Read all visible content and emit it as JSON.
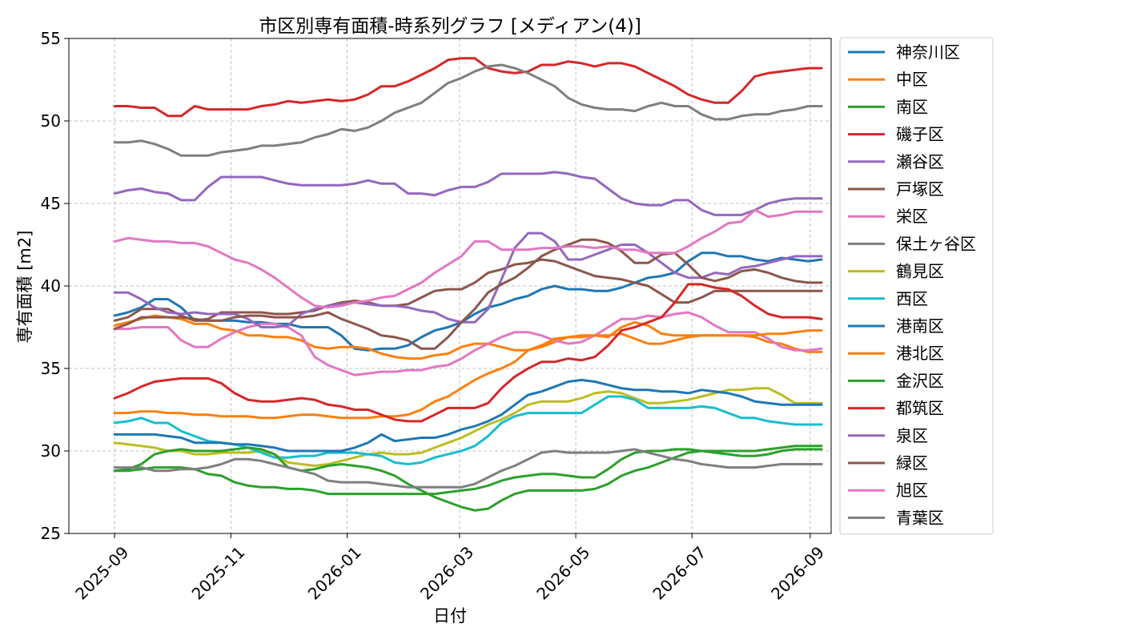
{
  "chart_data": {
    "type": "line",
    "title": "市区別専有面積-時系列グラフ [メディアン(4)]",
    "xlabel": "日付",
    "ylabel": "専有面積 [m2]",
    "x_start": "2025-09-01",
    "x_step_days": 7,
    "xlim": [
      "2025-08-08",
      "2026-09-12"
    ],
    "ylim": [
      25,
      55
    ],
    "y_ticks": [
      25,
      30,
      35,
      40,
      45,
      50,
      55
    ],
    "x_ticks": [
      {
        "label": "2025-09",
        "date": "2025-09-01"
      },
      {
        "label": "2025-11",
        "date": "2025-11-01"
      },
      {
        "label": "2026-01",
        "date": "2026-01-01"
      },
      {
        "label": "2026-03",
        "date": "2026-03-01"
      },
      {
        "label": "2026-05",
        "date": "2026-05-01"
      },
      {
        "label": "2026-07",
        "date": "2026-07-01"
      },
      {
        "label": "2026-09",
        "date": "2026-09-01"
      }
    ],
    "grid": true,
    "legend_position": "outside-right",
    "series": [
      {
        "name": "神奈川区",
        "color": "#1f77b4",
        "values": [
          38.2,
          38.4,
          38.7,
          39.2,
          39.2,
          38.7,
          37.9,
          37.9,
          37.9,
          37.9,
          37.8,
          37.8,
          37.7,
          37.7,
          37.5,
          37.5,
          37.5,
          37.0,
          36.2,
          36.1,
          36.2,
          36.2,
          36.4,
          36.9,
          37.3,
          37.5,
          37.8,
          38.3,
          38.7,
          38.9,
          39.2,
          39.4,
          39.8,
          40.0,
          39.8,
          39.8,
          39.7,
          39.7,
          39.9,
          40.2,
          40.5,
          40.6,
          40.8,
          41.5,
          42.0,
          42.0,
          41.8,
          41.8,
          41.6,
          41.5,
          41.7,
          41.6,
          41.5,
          41.6
        ]
      },
      {
        "name": "中区",
        "color": "#ff7f0e",
        "values": [
          37.6,
          37.8,
          38.0,
          38.2,
          38.1,
          38.0,
          37.7,
          37.7,
          37.4,
          37.3,
          37.0,
          37.0,
          36.9,
          36.9,
          36.7,
          36.3,
          36.2,
          36.3,
          36.3,
          36.2,
          35.9,
          35.7,
          35.6,
          35.6,
          35.8,
          35.9,
          36.3,
          36.5,
          36.5,
          36.3,
          36.1,
          36.1,
          36.3,
          36.6,
          36.9,
          36.9,
          37.0,
          37.0,
          37.1,
          36.8,
          36.5,
          36.5,
          36.7,
          36.9,
          37.0,
          37.0,
          37.0,
          37.0,
          36.9,
          36.6,
          36.5,
          36.2,
          36.0,
          36.0
        ]
      },
      {
        "name": "南区",
        "color": "#2ca02c",
        "values": [
          28.8,
          28.8,
          28.9,
          29.0,
          29.0,
          29.0,
          28.9,
          28.6,
          28.5,
          28.1,
          27.9,
          27.8,
          27.8,
          27.7,
          27.7,
          27.6,
          27.4,
          27.4,
          27.4,
          27.4,
          27.4,
          27.4,
          27.4,
          27.4,
          27.4,
          27.5,
          27.6,
          27.7,
          27.9,
          28.2,
          28.4,
          28.5,
          28.6,
          28.6,
          28.5,
          28.4,
          28.4,
          28.9,
          29.5,
          29.9,
          30.0,
          30.0,
          30.1,
          30.1,
          30.0,
          29.9,
          29.8,
          29.7,
          29.7,
          29.8,
          30.0,
          30.1,
          30.1,
          30.1
        ]
      },
      {
        "name": "磯子区",
        "color": "#d62728",
        "values": [
          50.9,
          50.9,
          50.8,
          50.8,
          50.3,
          50.3,
          50.9,
          50.7,
          50.7,
          50.7,
          50.7,
          50.9,
          51.0,
          51.2,
          51.1,
          51.2,
          51.3,
          51.2,
          51.3,
          51.6,
          52.1,
          52.1,
          52.4,
          52.8,
          53.2,
          53.7,
          53.8,
          53.8,
          53.2,
          53.0,
          52.9,
          53.0,
          53.4,
          53.4,
          53.6,
          53.5,
          53.3,
          53.5,
          53.5,
          53.3,
          52.9,
          52.5,
          52.1,
          51.6,
          51.3,
          51.1,
          51.1,
          51.8,
          52.7,
          52.9,
          53.0,
          53.1,
          53.2,
          53.2
        ]
      },
      {
        "name": "瀬谷区",
        "color": "#9467bd",
        "values": [
          45.6,
          45.8,
          45.9,
          45.7,
          45.6,
          45.2,
          45.2,
          46.0,
          46.6,
          46.6,
          46.6,
          46.6,
          46.4,
          46.2,
          46.1,
          46.1,
          46.1,
          46.1,
          46.2,
          46.4,
          46.2,
          46.2,
          45.6,
          45.6,
          45.5,
          45.8,
          46.0,
          46.0,
          46.3,
          46.8,
          46.8,
          46.8,
          46.8,
          46.9,
          46.8,
          46.6,
          46.5,
          45.9,
          45.3,
          45.0,
          44.9,
          44.9,
          45.2,
          45.2,
          44.6,
          44.3,
          44.3,
          44.3,
          44.6,
          45.0,
          45.2,
          45.3,
          45.3,
          45.3
        ]
      },
      {
        "name": "戸塚区",
        "color": "#8c564b",
        "values": [
          37.9,
          38.1,
          38.6,
          38.6,
          38.6,
          38.2,
          37.9,
          38.0,
          38.4,
          38.4,
          38.4,
          38.4,
          38.3,
          38.3,
          38.4,
          38.5,
          38.8,
          39.0,
          39.1,
          39.0,
          38.8,
          38.8,
          38.9,
          39.3,
          39.7,
          39.8,
          39.8,
          40.2,
          40.8,
          41.0,
          41.3,
          41.4,
          41.6,
          41.5,
          41.2,
          40.9,
          40.6,
          40.5,
          40.4,
          40.2,
          40.0,
          39.5,
          39.0,
          39.0,
          39.3,
          39.7,
          39.7,
          39.7,
          39.7,
          39.7,
          39.7,
          39.7,
          39.7,
          39.7
        ]
      },
      {
        "name": "栄区",
        "color": "#e377c2",
        "values": [
          37.4,
          37.4,
          37.5,
          37.5,
          37.5,
          36.7,
          36.3,
          36.3,
          36.8,
          37.2,
          37.5,
          37.7,
          37.7,
          37.5,
          37.0,
          35.7,
          35.2,
          34.9,
          34.6,
          34.7,
          34.8,
          34.8,
          34.9,
          34.9,
          35.1,
          35.2,
          35.6,
          36.1,
          36.5,
          36.9,
          37.2,
          37.2,
          37.0,
          36.7,
          36.5,
          36.6,
          37.0,
          37.5,
          38.0,
          38.0,
          38.2,
          38.1,
          38.3,
          38.4,
          38.1,
          37.6,
          37.2,
          37.2,
          37.2,
          36.8,
          36.3,
          36.1,
          36.1,
          36.2
        ]
      },
      {
        "name": "保土ヶ谷区",
        "color": "#7f7f7f",
        "values": [
          48.7,
          48.7,
          48.8,
          48.6,
          48.3,
          47.9,
          47.9,
          47.9,
          48.1,
          48.2,
          48.3,
          48.5,
          48.5,
          48.6,
          48.7,
          49.0,
          49.2,
          49.5,
          49.4,
          49.6,
          50.0,
          50.5,
          50.8,
          51.1,
          51.7,
          52.3,
          52.6,
          53.0,
          53.3,
          53.4,
          53.2,
          52.9,
          52.5,
          52.1,
          51.4,
          51.0,
          50.8,
          50.7,
          50.7,
          50.6,
          50.9,
          51.1,
          50.9,
          50.9,
          50.4,
          50.1,
          50.1,
          50.3,
          50.4,
          50.4,
          50.6,
          50.7,
          50.9,
          50.9
        ]
      },
      {
        "name": "鶴見区",
        "color": "#bcbd22",
        "values": [
          30.5,
          30.4,
          30.3,
          30.2,
          30.0,
          30.0,
          29.8,
          29.8,
          29.9,
          29.9,
          29.9,
          30.0,
          29.8,
          29.3,
          29.2,
          29.1,
          29.2,
          29.4,
          29.6,
          29.8,
          29.9,
          29.8,
          29.8,
          29.9,
          30.2,
          30.5,
          30.8,
          31.2,
          31.6,
          31.9,
          32.3,
          32.8,
          33.0,
          33.0,
          33.0,
          33.2,
          33.5,
          33.6,
          33.5,
          33.2,
          32.9,
          32.9,
          33.0,
          33.1,
          33.3,
          33.5,
          33.7,
          33.7,
          33.8,
          33.8,
          33.4,
          32.9,
          32.9,
          32.9
        ]
      },
      {
        "name": "西区",
        "color": "#17becf",
        "values": [
          31.7,
          31.8,
          32.0,
          31.7,
          31.7,
          31.2,
          30.9,
          30.6,
          30.5,
          30.4,
          30.2,
          29.9,
          29.6,
          29.6,
          29.7,
          29.7,
          29.9,
          29.9,
          29.9,
          29.8,
          29.7,
          29.3,
          29.2,
          29.3,
          29.6,
          29.8,
          30.0,
          30.3,
          30.9,
          31.7,
          32.1,
          32.3,
          32.3,
          32.3,
          32.3,
          32.3,
          32.8,
          33.3,
          33.3,
          33.1,
          32.6,
          32.6,
          32.6,
          32.6,
          32.7,
          32.6,
          32.3,
          32.0,
          32.0,
          31.8,
          31.7,
          31.6,
          31.6,
          31.6
        ]
      },
      {
        "name": "港南区",
        "color": "#1f77b4",
        "values": [
          31.0,
          31.0,
          31.0,
          31.0,
          30.9,
          30.8,
          30.5,
          30.5,
          30.5,
          30.4,
          30.4,
          30.3,
          30.2,
          30.0,
          30.0,
          30.0,
          30.0,
          30.0,
          30.2,
          30.5,
          31.0,
          30.6,
          30.7,
          30.8,
          30.8,
          31.0,
          31.3,
          31.5,
          31.8,
          32.2,
          32.8,
          33.4,
          33.6,
          33.9,
          34.2,
          34.3,
          34.2,
          34.0,
          33.8,
          33.7,
          33.7,
          33.6,
          33.6,
          33.5,
          33.7,
          33.6,
          33.5,
          33.3,
          33.0,
          32.9,
          32.8,
          32.8,
          32.8,
          32.8
        ]
      },
      {
        "name": "港北区",
        "color": "#ff7f0e",
        "values": [
          32.3,
          32.3,
          32.4,
          32.4,
          32.3,
          32.3,
          32.2,
          32.2,
          32.1,
          32.1,
          32.1,
          32.0,
          32.0,
          32.1,
          32.2,
          32.2,
          32.1,
          32.0,
          32.0,
          32.0,
          32.1,
          32.1,
          32.2,
          32.5,
          33.0,
          33.3,
          33.8,
          34.3,
          34.7,
          35.0,
          35.4,
          36.1,
          36.4,
          36.8,
          36.9,
          37.0,
          37.0,
          36.9,
          37.5,
          37.8,
          37.6,
          37.1,
          37.0,
          37.0,
          37.0,
          37.0,
          37.0,
          37.0,
          37.0,
          37.1,
          37.1,
          37.2,
          37.3,
          37.3
        ]
      },
      {
        "name": "金沢区",
        "color": "#2ca02c",
        "values": [
          28.8,
          28.9,
          29.2,
          29.8,
          30.0,
          30.1,
          30.0,
          30.0,
          30.0,
          30.1,
          30.2,
          30.1,
          29.8,
          29.0,
          28.8,
          28.9,
          29.1,
          29.2,
          29.1,
          29.0,
          28.8,
          28.5,
          28.0,
          27.6,
          27.2,
          26.9,
          26.6,
          26.4,
          26.5,
          27.0,
          27.4,
          27.6,
          27.6,
          27.6,
          27.6,
          27.6,
          27.7,
          28.0,
          28.5,
          28.8,
          29.0,
          29.3,
          29.6,
          29.9,
          30.0,
          30.0,
          30.0,
          30.0,
          30.0,
          30.1,
          30.2,
          30.3,
          30.3,
          30.3
        ]
      },
      {
        "name": "都筑区",
        "color": "#d62728",
        "values": [
          33.2,
          33.5,
          33.9,
          34.2,
          34.3,
          34.4,
          34.4,
          34.4,
          34.1,
          33.5,
          33.1,
          33.0,
          33.0,
          33.1,
          33.2,
          33.1,
          32.8,
          32.7,
          32.5,
          32.5,
          32.2,
          31.9,
          31.8,
          31.8,
          32.2,
          32.6,
          32.6,
          32.6,
          32.9,
          33.8,
          34.5,
          35.0,
          35.4,
          35.4,
          35.6,
          35.5,
          35.7,
          36.4,
          37.3,
          37.5,
          37.8,
          38.1,
          39.0,
          40.1,
          40.1,
          39.9,
          39.8,
          39.4,
          38.8,
          38.3,
          38.1,
          38.1,
          38.1,
          38.0
        ]
      },
      {
        "name": "泉区",
        "color": "#9467bd",
        "values": [
          39.6,
          39.6,
          39.2,
          38.7,
          38.4,
          38.3,
          38.4,
          38.3,
          38.3,
          38.3,
          38.0,
          37.5,
          37.5,
          37.6,
          38.3,
          38.6,
          38.8,
          38.9,
          39.0,
          38.9,
          38.8,
          38.8,
          38.7,
          38.5,
          38.4,
          38.0,
          37.8,
          37.8,
          38.6,
          40.4,
          42.3,
          43.2,
          43.2,
          42.7,
          41.6,
          41.6,
          41.9,
          42.2,
          42.5,
          42.5,
          42.0,
          41.4,
          40.8,
          40.5,
          40.5,
          40.8,
          40.7,
          41.1,
          41.2,
          41.4,
          41.6,
          41.8,
          41.8,
          41.8
        ]
      },
      {
        "name": "緑区",
        "color": "#8c564b",
        "values": [
          37.4,
          37.7,
          38.1,
          38.1,
          38.1,
          38.1,
          38.0,
          37.9,
          37.9,
          38.1,
          38.2,
          38.2,
          38.1,
          38.1,
          38.1,
          38.2,
          38.4,
          38.0,
          37.7,
          37.4,
          37.0,
          36.9,
          36.7,
          36.2,
          36.2,
          36.9,
          37.8,
          38.6,
          39.6,
          40.1,
          40.5,
          41.1,
          41.8,
          42.2,
          42.5,
          42.8,
          42.8,
          42.6,
          42.1,
          41.4,
          41.4,
          41.9,
          42.0,
          41.3,
          40.5,
          40.3,
          40.5,
          40.9,
          41.0,
          40.8,
          40.5,
          40.3,
          40.2,
          40.2
        ]
      },
      {
        "name": "旭区",
        "color": "#e377c2",
        "values": [
          42.7,
          42.9,
          42.8,
          42.7,
          42.7,
          42.6,
          42.6,
          42.4,
          42.0,
          41.6,
          41.4,
          41.0,
          40.5,
          39.9,
          39.3,
          38.8,
          38.7,
          38.8,
          39.0,
          39.1,
          39.3,
          39.4,
          39.8,
          40.2,
          40.8,
          41.3,
          41.8,
          42.7,
          42.7,
          42.2,
          42.2,
          42.2,
          42.3,
          42.3,
          42.4,
          42.4,
          42.3,
          42.4,
          42.2,
          42.2,
          42.0,
          42.0,
          42.0,
          42.4,
          42.9,
          43.3,
          43.8,
          43.9,
          44.6,
          44.2,
          44.3,
          44.5,
          44.5,
          44.5
        ]
      },
      {
        "name": "青葉区",
        "color": "#7f7f7f",
        "values": [
          29.0,
          29.0,
          29.0,
          28.8,
          28.8,
          28.9,
          28.9,
          29.0,
          29.2,
          29.5,
          29.5,
          29.4,
          29.2,
          29.0,
          28.8,
          28.6,
          28.2,
          28.1,
          28.1,
          28.1,
          28.0,
          27.9,
          27.8,
          27.8,
          27.8,
          27.8,
          27.8,
          28.0,
          28.4,
          28.8,
          29.1,
          29.5,
          29.9,
          30.0,
          29.9,
          29.9,
          29.9,
          29.9,
          30.0,
          30.1,
          29.9,
          29.7,
          29.5,
          29.4,
          29.2,
          29.1,
          29.0,
          29.0,
          29.0,
          29.1,
          29.2,
          29.2,
          29.2,
          29.2
        ]
      }
    ]
  }
}
